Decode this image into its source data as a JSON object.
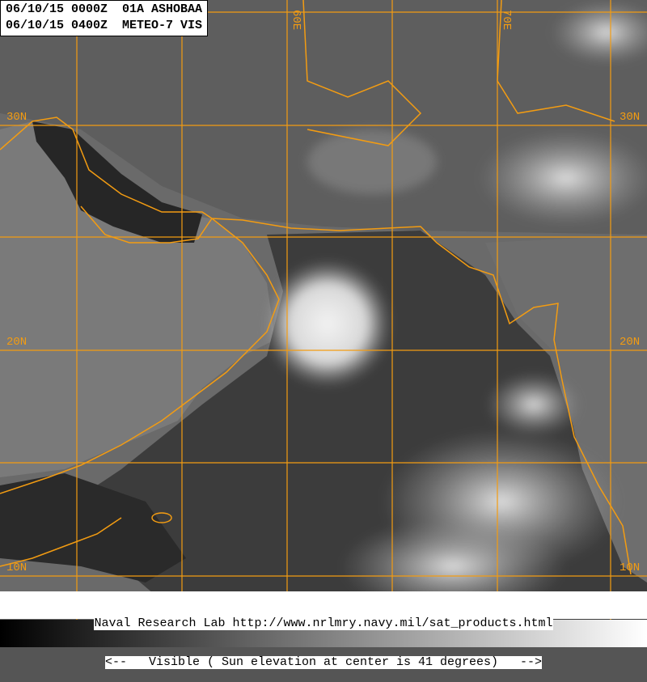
{
  "header": {
    "line1": "06/10/15 0000Z  01A ASHOBAA",
    "line2": "06/10/15 0400Z  METEO-7 VIS"
  },
  "footer": {
    "line1": "Naval Research Lab http://www.nrlmry.navy.mil/sat_products.html",
    "line2": "<--   Visible ( Sun elevation at center is 41 degrees)   -->"
  },
  "grid_labels": {
    "lat_30_left": "30N",
    "lat_30_right": "30N",
    "lat_20_left": "20N",
    "lat_20_right": "20N",
    "lat_10_left": "10N",
    "lat_10_right": "10N",
    "lon_60": "60E",
    "lon_70": "70E"
  },
  "colors": {
    "grid": "#f39c12",
    "coast": "#f39c12"
  },
  "storm": "01A ASHOBAA",
  "sensor": "METEO-7 VIS",
  "sun_elevation_degrees": 41
}
